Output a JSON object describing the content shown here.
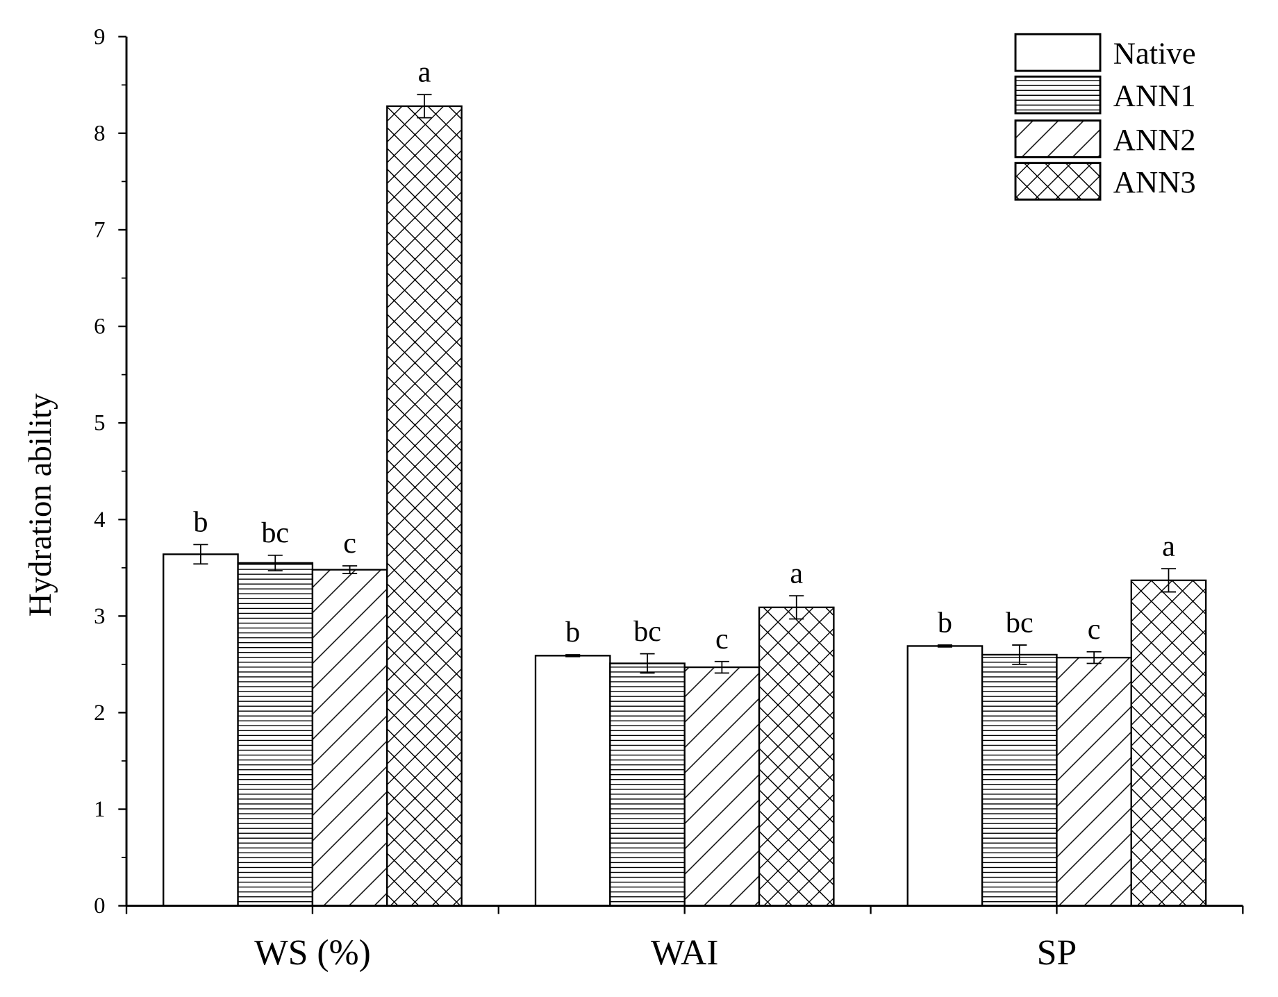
{
  "chart_data": {
    "type": "bar",
    "title": "",
    "xlabel": "",
    "ylabel": "Hydration ability",
    "ylim": [
      0,
      9
    ],
    "yticks": [
      "0",
      "1",
      "2",
      "3",
      "4",
      "5",
      "6",
      "7",
      "8",
      "9"
    ],
    "categories": [
      "WS (%)",
      "WAI",
      "SP"
    ],
    "legend_position": "top-right",
    "series": [
      {
        "name": "Native",
        "pattern": "none",
        "values": [
          3.64,
          2.59,
          2.69
        ],
        "errors": [
          0.1,
          0.01,
          0.01
        ],
        "letters": [
          "b",
          "b",
          "b"
        ]
      },
      {
        "name": "ANN1",
        "pattern": "horizontal",
        "values": [
          3.55,
          2.51,
          2.6
        ],
        "errors": [
          0.08,
          0.1,
          0.1
        ],
        "letters": [
          "bc",
          "bc",
          "bc"
        ]
      },
      {
        "name": "ANN2",
        "pattern": "diagonal",
        "values": [
          3.48,
          2.47,
          2.57
        ],
        "errors": [
          0.04,
          0.06,
          0.06
        ],
        "letters": [
          "c",
          "c",
          "c"
        ]
      },
      {
        "name": "ANN3",
        "pattern": "crosshatch",
        "values": [
          8.28,
          3.09,
          3.37
        ],
        "errors": [
          0.12,
          0.12,
          0.12
        ],
        "letters": [
          "a",
          "a",
          "a"
        ]
      }
    ],
    "colors": {
      "stroke": "#000000",
      "background": "#ffffff"
    }
  }
}
